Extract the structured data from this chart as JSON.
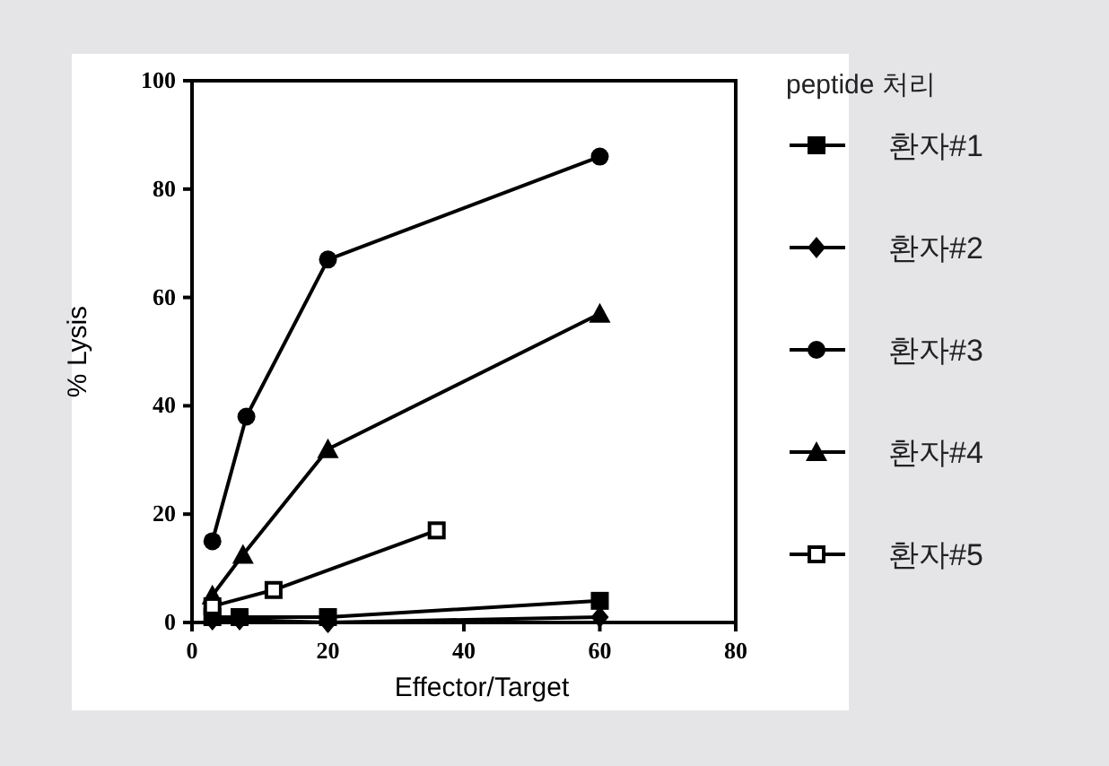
{
  "chart_data": {
    "type": "line",
    "xlabel": "Effector/Target",
    "ylabel": "% Lysis",
    "legend_title": "peptide 처리",
    "xlim": [
      0,
      80
    ],
    "xticks": [
      0,
      20,
      40,
      60,
      80
    ],
    "ylim": [
      0,
      100
    ],
    "yticks": [
      0,
      20,
      40,
      60,
      80,
      100
    ],
    "grid": false,
    "legend": "right",
    "line_style": "solid",
    "series": [
      {
        "name": "환자#1",
        "color": "#000000",
        "marker": "square",
        "x": [
          3,
          7,
          20,
          60
        ],
        "values": [
          1,
          1,
          1,
          4
        ]
      },
      {
        "name": "환자#2",
        "color": "#000000",
        "marker": "diamond",
        "x": [
          3,
          7,
          20,
          60
        ],
        "values": [
          0.5,
          0.5,
          0,
          1
        ]
      },
      {
        "name": "환자#3",
        "color": "#000000",
        "marker": "circle",
        "x": [
          3,
          8,
          20,
          60
        ],
        "values": [
          15,
          38,
          67,
          86
        ]
      },
      {
        "name": "환자#4",
        "color": "#000000",
        "marker": "triangle",
        "x": [
          3,
          7.5,
          20,
          60
        ],
        "values": [
          5,
          12.5,
          32,
          57
        ]
      },
      {
        "name": "환자#5",
        "color": "#000000",
        "marker": "square",
        "colors": [
          "#ffffff",
          "#ffffff",
          "#ffffff"
        ],
        "x": [
          3,
          12,
          36
        ],
        "values": [
          3,
          6,
          17
        ]
      }
    ]
  }
}
